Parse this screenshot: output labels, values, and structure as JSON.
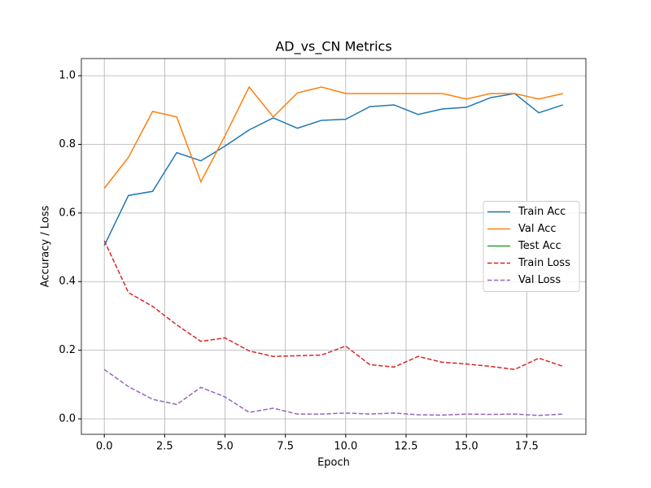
{
  "chart_data": {
    "type": "line",
    "title": "AD_vs_CN Metrics",
    "x_label": "Epoch",
    "y_label": "Accuracy / Loss",
    "x": [
      0,
      1,
      2,
      3,
      4,
      5,
      6,
      7,
      8,
      9,
      10,
      11,
      12,
      13,
      14,
      15,
      16,
      17,
      18,
      19
    ],
    "series": [
      {
        "name": "Train Acc",
        "color": "#1f77b4",
        "dashed": false,
        "values": [
          0.505,
          0.651,
          0.663,
          0.776,
          0.752,
          0.795,
          0.842,
          0.877,
          0.847,
          0.87,
          0.873,
          0.91,
          0.915,
          0.887,
          0.903,
          0.908,
          0.936,
          0.948,
          0.892,
          0.915
        ]
      },
      {
        "name": "Val Acc",
        "color": "#ff7f0e",
        "dashed": false,
        "values": [
          0.672,
          0.762,
          0.896,
          0.88,
          0.691,
          0.825,
          0.967,
          0.88,
          0.95,
          0.967,
          0.948,
          0.948,
          0.948,
          0.948,
          0.948,
          0.932,
          0.948,
          0.948,
          0.932,
          0.948
        ]
      },
      {
        "name": "Test Acc",
        "color": "#2ca02c",
        "dashed": false,
        "values": [
          null,
          null,
          null,
          null,
          null,
          null,
          null,
          null,
          null,
          null,
          null,
          null,
          null,
          null,
          null,
          null,
          null,
          null,
          null,
          null
        ]
      },
      {
        "name": "Train Loss",
        "color": "#d62728",
        "dashed": true,
        "values": [
          0.519,
          0.368,
          0.328,
          0.274,
          0.226,
          0.236,
          0.198,
          0.182,
          0.184,
          0.186,
          0.212,
          0.158,
          0.151,
          0.182,
          0.165,
          0.16,
          0.153,
          0.144,
          0.177,
          0.153
        ]
      },
      {
        "name": "Val Loss",
        "color": "#9467bd",
        "dashed": true,
        "values": [
          0.144,
          0.094,
          0.057,
          0.042,
          0.092,
          0.064,
          0.019,
          0.031,
          0.014,
          0.014,
          0.017,
          0.014,
          0.017,
          0.012,
          0.011,
          0.014,
          0.013,
          0.014,
          0.01,
          0.014
        ]
      }
    ],
    "xlim": [
      -0.95,
      19.95
    ],
    "xticks": [
      {
        "value": 0,
        "label": "0.0"
      },
      2.5,
      {
        "value": 5,
        "label": "5.0"
      },
      7.5,
      {
        "value": 10,
        "label": "10.0"
      },
      12.5,
      {
        "value": 15,
        "label": "15.0"
      },
      17.5
    ],
    "ylim": [
      -0.045,
      1.05
    ],
    "yticks": [
      {
        "value": 0,
        "label": "0.0"
      },
      0.2,
      0.4,
      0.6,
      0.8,
      {
        "value": 1,
        "label": "1.0"
      }
    ],
    "grid": true,
    "legend": "center right"
  }
}
